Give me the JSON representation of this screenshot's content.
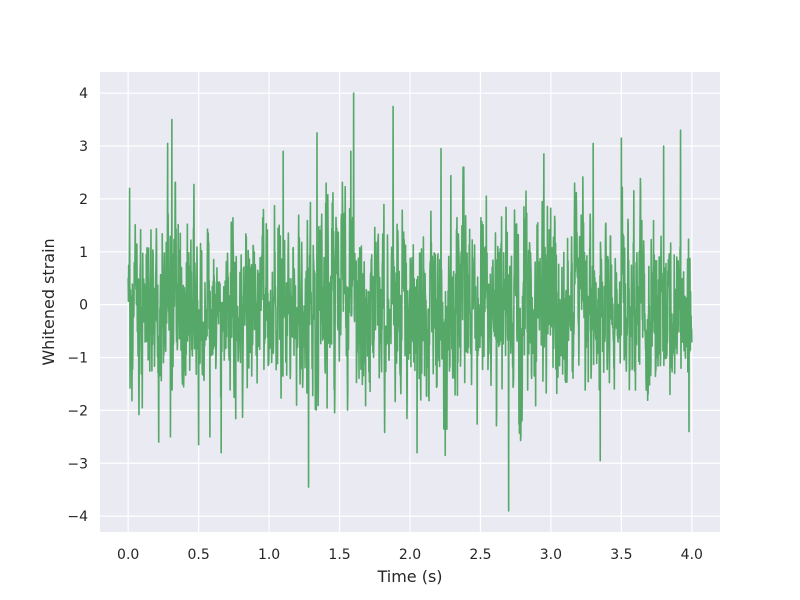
{
  "chart_data": {
    "type": "line",
    "title": "",
    "xlabel": "Time (s)",
    "ylabel": "Whitened strain",
    "xlim": [
      -0.2,
      4.2
    ],
    "ylim": [
      -4.3,
      4.4
    ],
    "xticks": [
      0.0,
      0.5,
      1.0,
      1.5,
      2.0,
      2.5,
      3.0,
      3.5,
      4.0
    ],
    "xtick_labels": [
      "0.0",
      "0.5",
      "1.0",
      "1.5",
      "2.0",
      "2.5",
      "3.0",
      "3.5",
      "4.0"
    ],
    "yticks": [
      -4,
      -3,
      -2,
      -1,
      0,
      1,
      2,
      3,
      4
    ],
    "ytick_labels": [
      "−4",
      "−3",
      "−2",
      "−1",
      "0",
      "1",
      "2",
      "3",
      "4"
    ],
    "grid": true,
    "background": "#eaeaf2",
    "grid_color": "#ffffff",
    "series": [
      {
        "color": "#55a868",
        "x_start": 0.0,
        "x_end": 4.0,
        "distribution": "noise, mean 0, std about 0.8",
        "extremes": [
          {
            "x": 0.01,
            "y": 2.2
          },
          {
            "x": 0.1,
            "y": -1.95
          },
          {
            "x": 0.28,
            "y": 3.05
          },
          {
            "x": 0.31,
            "y": 3.5
          },
          {
            "x": 0.3,
            "y": -2.5
          },
          {
            "x": 0.5,
            "y": -2.65
          },
          {
            "x": 0.58,
            "y": -2.5
          },
          {
            "x": 0.66,
            "y": -2.8
          },
          {
            "x": 1.1,
            "y": 2.9
          },
          {
            "x": 1.28,
            "y": -3.45
          },
          {
            "x": 1.34,
            "y": 3.25
          },
          {
            "x": 1.58,
            "y": 2.9
          },
          {
            "x": 1.6,
            "y": 4.0
          },
          {
            "x": 1.88,
            "y": 3.75
          },
          {
            "x": 2.05,
            "y": -2.8
          },
          {
            "x": 2.22,
            "y": 2.95
          },
          {
            "x": 2.25,
            "y": -2.85
          },
          {
            "x": 2.7,
            "y": -3.9
          },
          {
            "x": 2.95,
            "y": 2.85
          },
          {
            "x": 3.3,
            "y": 3.05
          },
          {
            "x": 3.35,
            "y": -2.95
          },
          {
            "x": 3.5,
            "y": 3.15
          },
          {
            "x": 3.8,
            "y": 3.0
          },
          {
            "x": 3.92,
            "y": 3.3
          },
          {
            "x": 3.98,
            "y": -2.4
          }
        ]
      }
    ]
  }
}
